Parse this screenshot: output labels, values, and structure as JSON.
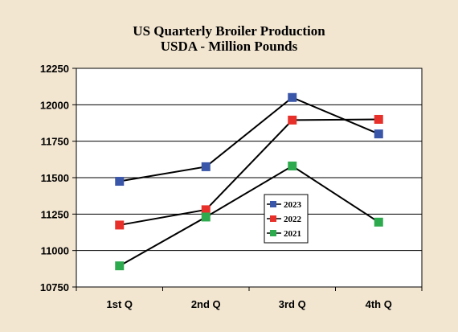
{
  "chart_data": {
    "type": "line",
    "title": "US Quarterly Broiler Production",
    "subtitle": "USDA - Million Pounds",
    "xlabel": "",
    "ylabel": "",
    "categories": [
      "1st Q",
      "2nd Q",
      "3rd Q",
      "4th Q"
    ],
    "ylim": [
      10750,
      12250
    ],
    "yticks": [
      "12250",
      "12000",
      "11750",
      "11500",
      "11250",
      "11000",
      "10750"
    ],
    "grid": true,
    "legend_position": "center-right",
    "series": [
      {
        "name": "2023",
        "color": "#3a56a8",
        "values": [
          11475,
          11575,
          12050,
          11800
        ]
      },
      {
        "name": "2022",
        "color": "#e8302a",
        "values": [
          11175,
          11280,
          11895,
          11900
        ]
      },
      {
        "name": "2021",
        "color": "#2eaa4e",
        "values": [
          10895,
          11230,
          11580,
          11195
        ]
      }
    ]
  }
}
